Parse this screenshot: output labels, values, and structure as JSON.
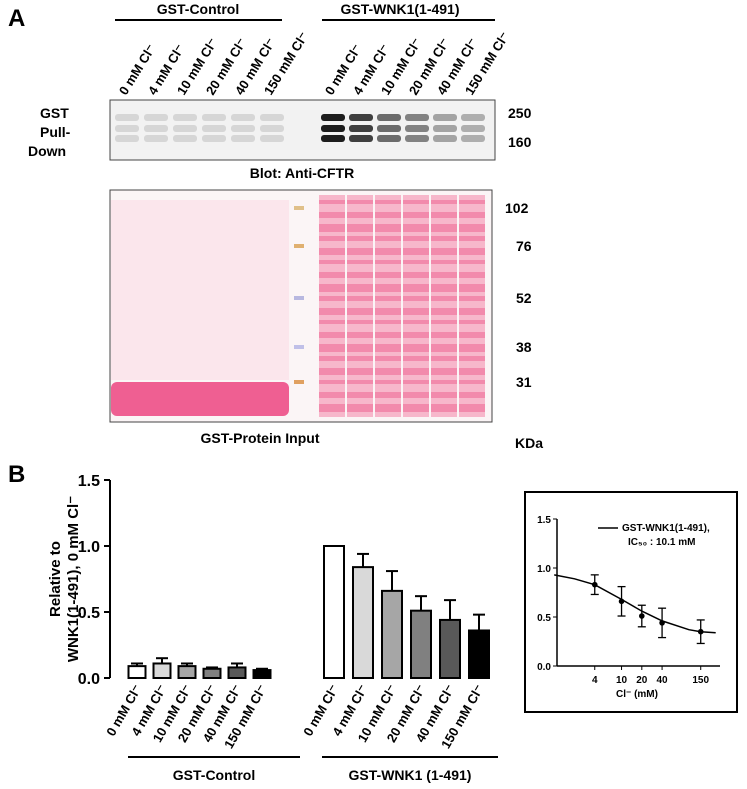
{
  "panel_a": {
    "label": "A",
    "groups": [
      "GST-Control",
      "GST-WNK1(1-491)"
    ],
    "lanes": [
      "0 mM Cl⁻",
      "4 mM Cl⁻",
      "10 mM Cl⁻",
      "20 mM Cl⁻",
      "40 mM Cl⁻",
      "150 mM Cl⁻",
      "0 mM Cl⁻",
      "4 mM Cl⁻",
      "10 mM Cl⁻",
      "20 mM Cl⁻",
      "40 mM Cl⁻",
      "150 mM Cl⁻"
    ],
    "side_label": [
      "GST",
      "Pull-",
      "Down"
    ],
    "blot_title": "Blot: Anti-CFTR",
    "blot_markers": [
      "250",
      "160"
    ],
    "input_title": "GST-Protein Input",
    "input_markers": [
      "102",
      "76",
      "52",
      "38",
      "31"
    ],
    "unit": "KDa"
  },
  "panel_b": {
    "label": "B"
  },
  "chart_data": [
    {
      "type": "bar",
      "y_label": [
        "Relative to",
        "WNK1(1-491), 0 mM Cl⁻"
      ],
      "categories": [
        "0 mM Cl⁻",
        "4 mM Cl⁻",
        "10 mM Cl⁻",
        "20 mM Cl⁻",
        "40 mM Cl⁻",
        "150 mM Cl⁻",
        "0 mM Cl⁻",
        "4 mM Cl⁻",
        "10 mM Cl⁻",
        "20 mM Cl⁻",
        "40 mM Cl⁻",
        "150 mM Cl⁻"
      ],
      "groups": [
        "GST-Control",
        "GST-WNK1 (1-491)"
      ],
      "values": [
        0.09,
        0.11,
        0.09,
        0.07,
        0.08,
        0.06,
        1.0,
        0.84,
        0.66,
        0.51,
        0.44,
        0.36
      ],
      "errors": [
        0.02,
        0.04,
        0.02,
        0.01,
        0.03,
        0.01,
        0,
        0.1,
        0.15,
        0.11,
        0.15,
        0.12
      ],
      "colors": [
        "#ffffff",
        "#d9d9d9",
        "#a6a6a6",
        "#808080",
        "#595959",
        "#000000",
        "#ffffff",
        "#d9d9d9",
        "#a6a6a6",
        "#808080",
        "#595959",
        "#000000"
      ],
      "ylim": [
        0,
        1.5
      ],
      "yticks": [
        {
          "value": 0,
          "label": "0.0"
        },
        {
          "value": 0.5,
          "label": "0.5"
        },
        {
          "value": 1,
          "label": "1.0"
        },
        {
          "value": 1.5,
          "label": "1.5"
        }
      ]
    },
    {
      "type": "line",
      "x_label": "Cl⁻ (mM)",
      "log_x": true,
      "legend": [
        "GST-WNK1(1-491),",
        "IC₅₀ : 10.1 mM"
      ],
      "points": {
        "x": [
          4,
          10,
          20,
          40,
          150
        ],
        "values": [
          0.83,
          0.66,
          0.51,
          0.44,
          0.35
        ],
        "errors": [
          0.1,
          0.15,
          0.11,
          0.15,
          0.12
        ]
      },
      "fit": {
        "x": [
          1,
          2,
          4,
          10,
          20,
          40,
          100,
          150,
          250
        ],
        "values": [
          0.93,
          0.89,
          0.83,
          0.68,
          0.56,
          0.46,
          0.37,
          0.35,
          0.34
        ]
      },
      "xlim": [
        1.1,
        290
      ],
      "xticks": [
        4,
        10,
        20,
        40,
        150
      ],
      "ylim": [
        0,
        1.5
      ],
      "yticks": [
        {
          "value": 0,
          "label": "0.0"
        },
        {
          "value": 0.5,
          "label": "0.5"
        },
        {
          "value": 1,
          "label": "1.0"
        },
        {
          "value": 1.5,
          "label": "1.5"
        }
      ]
    }
  ]
}
